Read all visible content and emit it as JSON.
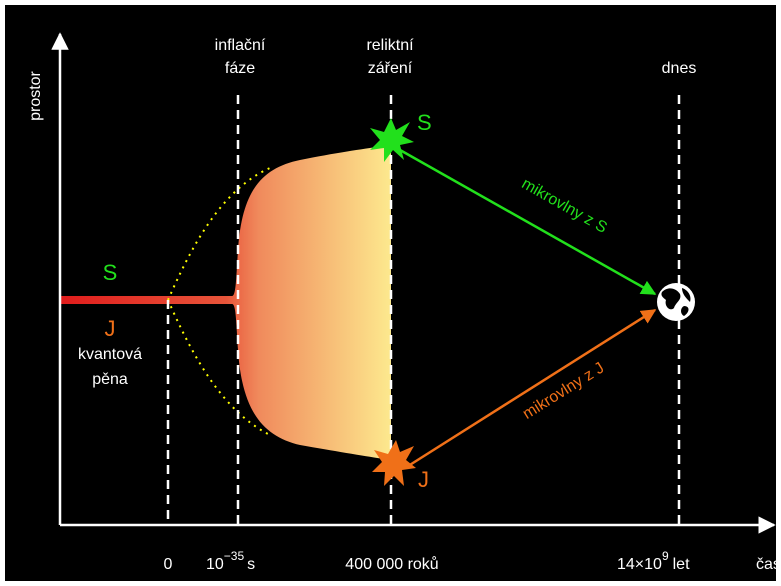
{
  "axes": {
    "y_label": "prostor",
    "x_label": "čas"
  },
  "epochs": [
    {
      "time": "0"
    },
    {
      "top": [
        "inflační",
        "fáze"
      ],
      "time": "10",
      "time_exp": "−35",
      "time_unit": "s"
    },
    {
      "top": [
        "reliktní",
        "záření"
      ],
      "time": "400 000 roků"
    },
    {
      "top": [
        "dnes"
      ],
      "time": "14×10",
      "time_exp": "9",
      "time_unit": "let"
    }
  ],
  "points": {
    "s": "S",
    "j": "J"
  },
  "quantum_foam": [
    "kvantová",
    "pěna"
  ],
  "arrows": {
    "s": "mikrovlny z S",
    "j": "mikrovlny z J"
  }
}
